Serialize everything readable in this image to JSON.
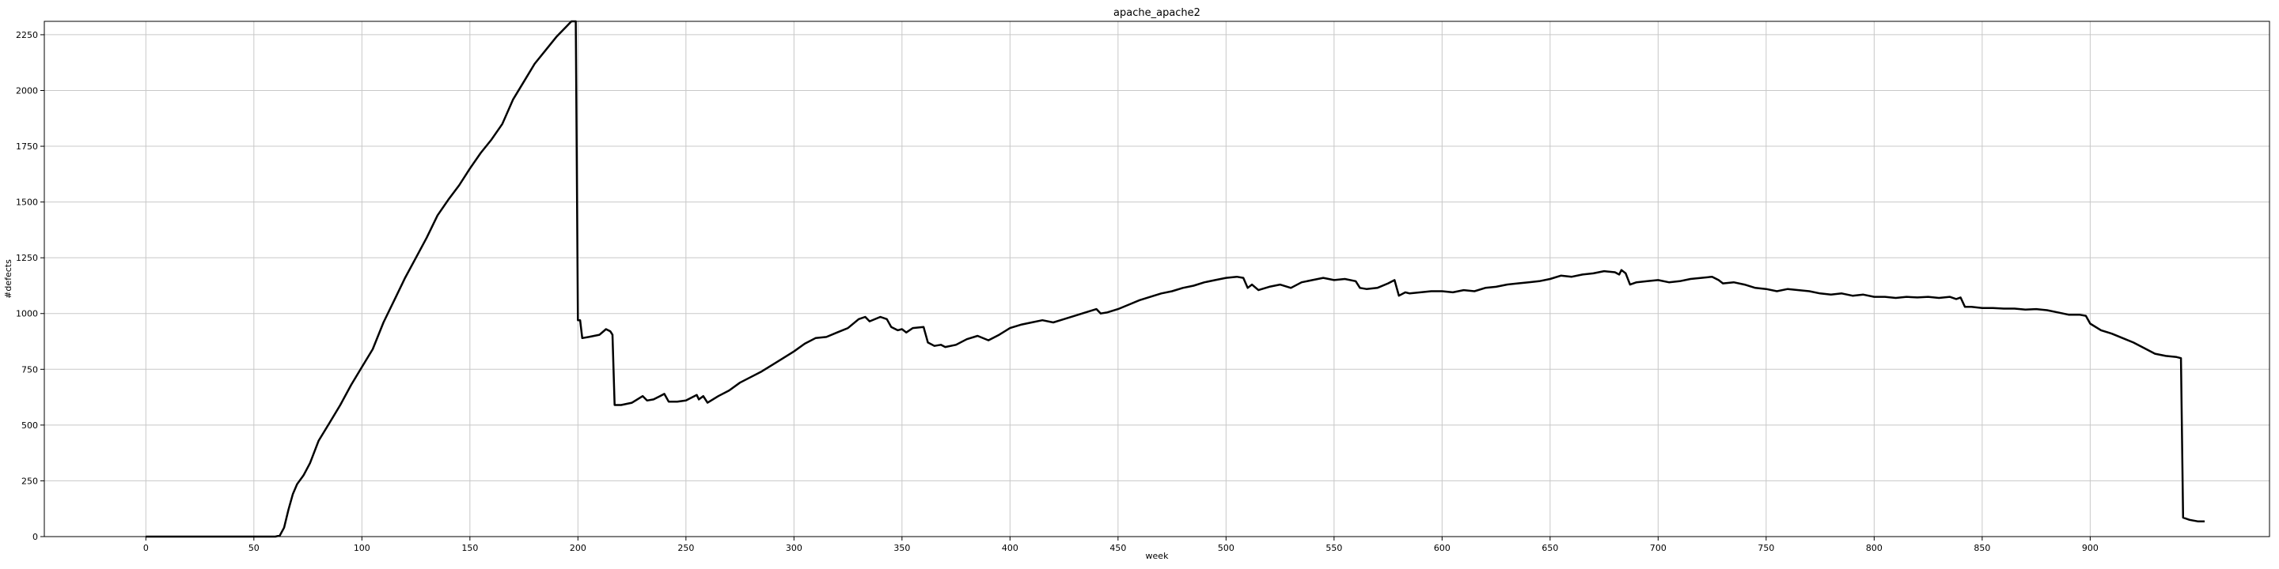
{
  "chart_data": {
    "type": "line",
    "title": "apache_apache2",
    "xlabel": "week",
    "ylabel": "#defects",
    "xlim": [
      -47,
      983
    ],
    "ylim": [
      0,
      2310
    ],
    "grid": true,
    "x_ticks": [
      0,
      50,
      100,
      150,
      200,
      250,
      300,
      350,
      400,
      450,
      500,
      550,
      600,
      650,
      700,
      750,
      800,
      850,
      900
    ],
    "y_ticks": [
      0,
      250,
      500,
      750,
      1000,
      1250,
      1500,
      1750,
      2000,
      2250
    ],
    "series": [
      {
        "color": "#000000",
        "points": [
          [
            0,
            0
          ],
          [
            10,
            0
          ],
          [
            20,
            0
          ],
          [
            30,
            0
          ],
          [
            40,
            0
          ],
          [
            50,
            0
          ],
          [
            55,
            0
          ],
          [
            60,
            0
          ],
          [
            62,
            5
          ],
          [
            64,
            40
          ],
          [
            66,
            120
          ],
          [
            68,
            190
          ],
          [
            70,
            235
          ],
          [
            73,
            275
          ],
          [
            76,
            330
          ],
          [
            80,
            430
          ],
          [
            85,
            510
          ],
          [
            90,
            590
          ],
          [
            95,
            680
          ],
          [
            100,
            760
          ],
          [
            105,
            840
          ],
          [
            110,
            960
          ],
          [
            115,
            1060
          ],
          [
            120,
            1160
          ],
          [
            125,
            1250
          ],
          [
            130,
            1340
          ],
          [
            135,
            1440
          ],
          [
            140,
            1510
          ],
          [
            145,
            1575
          ],
          [
            150,
            1650
          ],
          [
            155,
            1720
          ],
          [
            160,
            1780
          ],
          [
            165,
            1850
          ],
          [
            170,
            1960
          ],
          [
            175,
            2040
          ],
          [
            180,
            2120
          ],
          [
            185,
            2180
          ],
          [
            190,
            2240
          ],
          [
            195,
            2290
          ],
          [
            197,
            2310
          ],
          [
            199,
            2310
          ],
          [
            200,
            970
          ],
          [
            201,
            970
          ],
          [
            202,
            890
          ],
          [
            205,
            895
          ],
          [
            210,
            905
          ],
          [
            213,
            930
          ],
          [
            215,
            920
          ],
          [
            216,
            905
          ],
          [
            217,
            590
          ],
          [
            220,
            590
          ],
          [
            225,
            600
          ],
          [
            230,
            630
          ],
          [
            232,
            610
          ],
          [
            235,
            615
          ],
          [
            238,
            630
          ],
          [
            240,
            640
          ],
          [
            242,
            605
          ],
          [
            246,
            605
          ],
          [
            250,
            610
          ],
          [
            255,
            635
          ],
          [
            256,
            615
          ],
          [
            258,
            630
          ],
          [
            260,
            600
          ],
          [
            265,
            630
          ],
          [
            270,
            655
          ],
          [
            275,
            690
          ],
          [
            280,
            715
          ],
          [
            285,
            740
          ],
          [
            290,
            770
          ],
          [
            295,
            800
          ],
          [
            300,
            830
          ],
          [
            305,
            865
          ],
          [
            310,
            890
          ],
          [
            315,
            895
          ],
          [
            320,
            915
          ],
          [
            325,
            935
          ],
          [
            330,
            975
          ],
          [
            333,
            985
          ],
          [
            335,
            965
          ],
          [
            340,
            985
          ],
          [
            343,
            975
          ],
          [
            345,
            940
          ],
          [
            348,
            925
          ],
          [
            350,
            930
          ],
          [
            352,
            915
          ],
          [
            355,
            935
          ],
          [
            360,
            940
          ],
          [
            362,
            870
          ],
          [
            365,
            855
          ],
          [
            368,
            860
          ],
          [
            370,
            850
          ],
          [
            375,
            860
          ],
          [
            380,
            885
          ],
          [
            385,
            900
          ],
          [
            390,
            880
          ],
          [
            395,
            905
          ],
          [
            400,
            935
          ],
          [
            405,
            950
          ],
          [
            410,
            960
          ],
          [
            415,
            970
          ],
          [
            420,
            960
          ],
          [
            425,
            975
          ],
          [
            430,
            990
          ],
          [
            435,
            1005
          ],
          [
            440,
            1020
          ],
          [
            442,
            1000
          ],
          [
            445,
            1005
          ],
          [
            450,
            1020
          ],
          [
            455,
            1040
          ],
          [
            460,
            1060
          ],
          [
            465,
            1075
          ],
          [
            470,
            1090
          ],
          [
            475,
            1100
          ],
          [
            480,
            1115
          ],
          [
            485,
            1125
          ],
          [
            490,
            1140
          ],
          [
            495,
            1150
          ],
          [
            500,
            1160
          ],
          [
            505,
            1165
          ],
          [
            508,
            1160
          ],
          [
            510,
            1115
          ],
          [
            512,
            1130
          ],
          [
            515,
            1105
          ],
          [
            520,
            1120
          ],
          [
            525,
            1130
          ],
          [
            530,
            1115
          ],
          [
            535,
            1140
          ],
          [
            540,
            1150
          ],
          [
            545,
            1160
          ],
          [
            550,
            1150
          ],
          [
            555,
            1155
          ],
          [
            560,
            1145
          ],
          [
            562,
            1115
          ],
          [
            565,
            1110
          ],
          [
            570,
            1115
          ],
          [
            575,
            1135
          ],
          [
            578,
            1150
          ],
          [
            580,
            1080
          ],
          [
            583,
            1095
          ],
          [
            585,
            1090
          ],
          [
            590,
            1095
          ],
          [
            595,
            1100
          ],
          [
            600,
            1100
          ],
          [
            605,
            1095
          ],
          [
            610,
            1105
          ],
          [
            615,
            1100
          ],
          [
            620,
            1115
          ],
          [
            625,
            1120
          ],
          [
            630,
            1130
          ],
          [
            635,
            1135
          ],
          [
            640,
            1140
          ],
          [
            645,
            1145
          ],
          [
            650,
            1155
          ],
          [
            655,
            1170
          ],
          [
            660,
            1165
          ],
          [
            665,
            1175
          ],
          [
            670,
            1180
          ],
          [
            675,
            1190
          ],
          [
            680,
            1185
          ],
          [
            682,
            1175
          ],
          [
            683,
            1195
          ],
          [
            685,
            1180
          ],
          [
            687,
            1130
          ],
          [
            690,
            1140
          ],
          [
            695,
            1145
          ],
          [
            700,
            1150
          ],
          [
            705,
            1140
          ],
          [
            710,
            1145
          ],
          [
            715,
            1155
          ],
          [
            720,
            1160
          ],
          [
            725,
            1165
          ],
          [
            728,
            1150
          ],
          [
            730,
            1135
          ],
          [
            735,
            1140
          ],
          [
            740,
            1130
          ],
          [
            745,
            1115
          ],
          [
            750,
            1110
          ],
          [
            755,
            1100
          ],
          [
            760,
            1110
          ],
          [
            765,
            1105
          ],
          [
            770,
            1100
          ],
          [
            775,
            1090
          ],
          [
            780,
            1085
          ],
          [
            785,
            1090
          ],
          [
            790,
            1080
          ],
          [
            795,
            1085
          ],
          [
            800,
            1075
          ],
          [
            805,
            1075
          ],
          [
            810,
            1070
          ],
          [
            815,
            1075
          ],
          [
            820,
            1072
          ],
          [
            825,
            1075
          ],
          [
            830,
            1070
          ],
          [
            835,
            1075
          ],
          [
            838,
            1065
          ],
          [
            840,
            1072
          ],
          [
            842,
            1030
          ],
          [
            845,
            1030
          ],
          [
            850,
            1025
          ],
          [
            855,
            1025
          ],
          [
            860,
            1022
          ],
          [
            865,
            1022
          ],
          [
            870,
            1018
          ],
          [
            875,
            1020
          ],
          [
            880,
            1015
          ],
          [
            885,
            1005
          ],
          [
            890,
            995
          ],
          [
            895,
            995
          ],
          [
            898,
            990
          ],
          [
            900,
            955
          ],
          [
            905,
            925
          ],
          [
            910,
            910
          ],
          [
            915,
            890
          ],
          [
            920,
            870
          ],
          [
            925,
            845
          ],
          [
            930,
            820
          ],
          [
            935,
            810
          ],
          [
            940,
            805
          ],
          [
            942,
            800
          ],
          [
            943,
            85
          ],
          [
            946,
            75
          ],
          [
            950,
            68
          ],
          [
            953,
            68
          ]
        ]
      }
    ]
  }
}
